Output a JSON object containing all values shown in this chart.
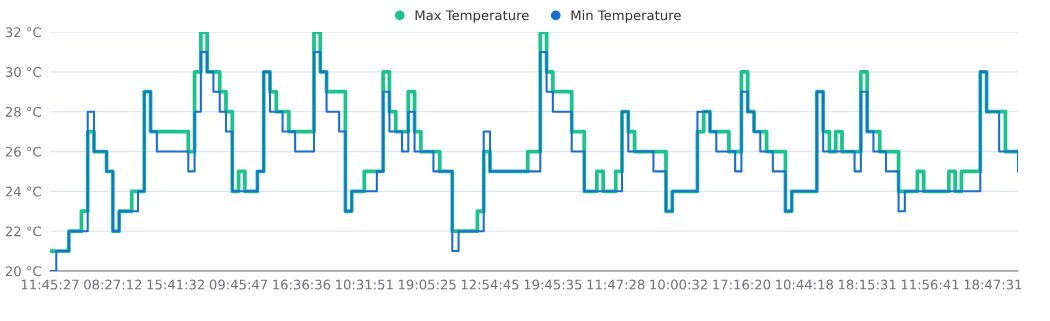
{
  "chart_data": {
    "type": "step",
    "legend": "top",
    "grid": "y",
    "marker": "none",
    "line_style": "solid",
    "categories": [
      "11:45:27",
      null,
      null,
      null,
      null,
      null,
      null,
      null,
      null,
      null,
      "08:27:12",
      null,
      null,
      null,
      null,
      null,
      null,
      null,
      null,
      null,
      "15:41:32",
      null,
      null,
      null,
      null,
      null,
      null,
      null,
      null,
      null,
      "09:45:47",
      null,
      null,
      null,
      null,
      null,
      null,
      null,
      null,
      null,
      "16:36:36",
      null,
      null,
      null,
      null,
      null,
      null,
      null,
      null,
      null,
      "10:31:51",
      null,
      null,
      null,
      null,
      null,
      null,
      null,
      null,
      null,
      "19:05:25",
      null,
      null,
      null,
      null,
      null,
      null,
      null,
      null,
      null,
      "12:54:45",
      null,
      null,
      null,
      null,
      null,
      null,
      null,
      null,
      null,
      "19:45:35",
      null,
      null,
      null,
      null,
      null,
      null,
      null,
      null,
      null,
      "11:47:28",
      null,
      null,
      null,
      null,
      null,
      null,
      null,
      null,
      null,
      "10:00:32",
      null,
      null,
      null,
      null,
      null,
      null,
      null,
      null,
      null,
      "17:16:20",
      null,
      null,
      null,
      null,
      null,
      null,
      null,
      null,
      null,
      "10:44:18",
      null,
      null,
      null,
      null,
      null,
      null,
      null,
      null,
      null,
      "18:15:31",
      null,
      null,
      null,
      null,
      null,
      null,
      null,
      null,
      null,
      "11:56:41",
      null,
      null,
      null,
      null,
      null,
      null,
      null,
      null,
      null,
      "18:47:31",
      null,
      null,
      null,
      null
    ],
    "ylim": [
      20,
      32
    ],
    "yticks": [
      {
        "value": 20,
        "label": "20 °C"
      },
      {
        "value": 22,
        "label": "22 °C"
      },
      {
        "value": 24,
        "label": "24 °C"
      },
      {
        "value": 26,
        "label": "26 °C"
      },
      {
        "value": 28,
        "label": "28 °C"
      },
      {
        "value": 30,
        "label": "30 °C"
      },
      {
        "value": 32,
        "label": "32 °C"
      }
    ],
    "series": [
      {
        "name": "Max Temperature",
        "color": "#1ec28b",
        "values": [
          21,
          21,
          21,
          22,
          22,
          23,
          27,
          26,
          26,
          25,
          22,
          23,
          23,
          24,
          24,
          29,
          27,
          27,
          27,
          27,
          27,
          27,
          26,
          30,
          32,
          30,
          30,
          29,
          28,
          24,
          25,
          24,
          24,
          25,
          30,
          29,
          28,
          28,
          27,
          27,
          27,
          27,
          32,
          30,
          29,
          29,
          29,
          23,
          24,
          24,
          25,
          25,
          25,
          30,
          28,
          27,
          27,
          29,
          27,
          26,
          26,
          26,
          25,
          25,
          22,
          22,
          22,
          22,
          23,
          26,
          25,
          25,
          25,
          25,
          25,
          25,
          26,
          26,
          32,
          30,
          29,
          29,
          29,
          27,
          27,
          24,
          24,
          25,
          24,
          24,
          25,
          28,
          27,
          26,
          26,
          26,
          26,
          26,
          23,
          24,
          24,
          24,
          24,
          27,
          28,
          27,
          27,
          27,
          26,
          26,
          30,
          28,
          27,
          27,
          26,
          26,
          26,
          23,
          24,
          24,
          24,
          24,
          29,
          27,
          26,
          27,
          26,
          26,
          26,
          30,
          27,
          27,
          26,
          26,
          26,
          24,
          24,
          24,
          25,
          24,
          24,
          24,
          24,
          25,
          24,
          25,
          25,
          25,
          30,
          28,
          28,
          28,
          26,
          26,
          26
        ]
      },
      {
        "name": "Min Temperature",
        "color": "#1a6fd0",
        "values": [
          20,
          21,
          21,
          22,
          22,
          22,
          28,
          26,
          26,
          25,
          22,
          23,
          23,
          23,
          24,
          29,
          27,
          26,
          26,
          26,
          26,
          26,
          25,
          28,
          31,
          30,
          29,
          28,
          27,
          24,
          24,
          24,
          24,
          25,
          30,
          28,
          28,
          27,
          27,
          26,
          26,
          26,
          31,
          30,
          28,
          28,
          27,
          23,
          24,
          24,
          24,
          24,
          25,
          29,
          27,
          27,
          26,
          28,
          26,
          26,
          26,
          25,
          25,
          25,
          21,
          22,
          22,
          22,
          22,
          27,
          25,
          25,
          25,
          25,
          25,
          25,
          25,
          25,
          31,
          29,
          28,
          28,
          28,
          26,
          26,
          24,
          24,
          24,
          24,
          24,
          24,
          28,
          26,
          26,
          26,
          26,
          25,
          25,
          23,
          24,
          24,
          24,
          24,
          28,
          28,
          27,
          26,
          26,
          26,
          25,
          29,
          28,
          27,
          26,
          26,
          25,
          25,
          23,
          24,
          24,
          24,
          24,
          29,
          26,
          26,
          26,
          26,
          26,
          25,
          29,
          27,
          26,
          26,
          25,
          25,
          23,
          24,
          24,
          24,
          24,
          24,
          24,
          24,
          24,
          24,
          24,
          24,
          24,
          30,
          28,
          28,
          26,
          26,
          26,
          25
        ]
      }
    ]
  }
}
